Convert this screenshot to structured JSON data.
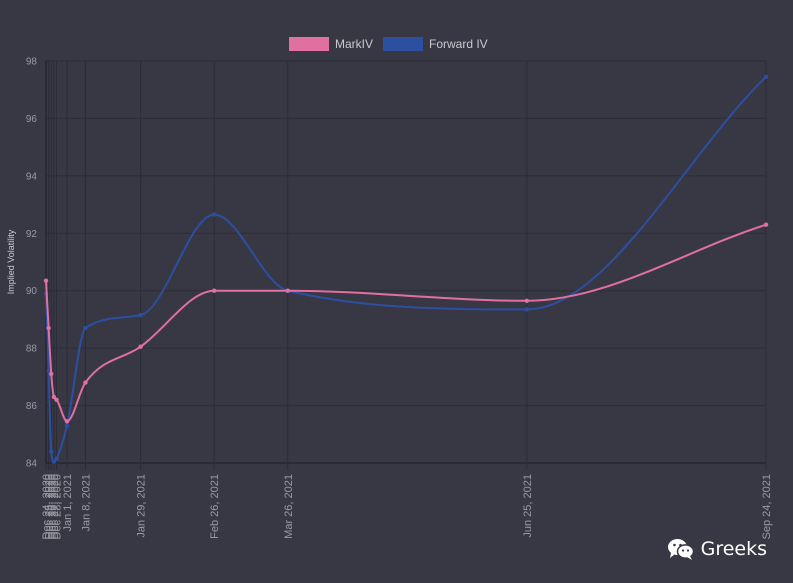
{
  "chart_data": {
    "type": "line",
    "ylabel": "Implied Volatility",
    "ylim": [
      84,
      98
    ],
    "yticks": [
      84,
      86,
      88,
      90,
      92,
      94,
      96,
      98
    ],
    "grid": true,
    "legend_position": "top",
    "categories": [
      "Dec 24, 2020",
      "Dec 25, 2020",
      "Dec 26, 2020",
      "Dec 27, 2020",
      "Dec 28, 2020",
      "Jan 1, 2021",
      "Jan 8, 2021",
      "Jan 29, 2021",
      "Feb 26, 2021",
      "Mar 26, 2021",
      "Jun 25, 2021",
      "Sep 24, 2021"
    ],
    "x_dates": [
      "2020-12-24",
      "2020-12-25",
      "2020-12-26",
      "2020-12-27",
      "2020-12-28",
      "2021-01-01",
      "2021-01-08",
      "2021-01-29",
      "2021-02-26",
      "2021-03-26",
      "2021-06-25",
      "2021-09-24"
    ],
    "series": [
      {
        "name": "MarkIV",
        "color": "#e0709f",
        "values": [
          90.35,
          88.7,
          87.1,
          86.3,
          86.2,
          85.45,
          86.8,
          88.05,
          90.0,
          90.0,
          89.65,
          92.3
        ]
      },
      {
        "name": "Forward IV",
        "color": "#2d4fa0",
        "values": [
          89.9,
          87.2,
          84.4,
          84.05,
          84.15,
          85.3,
          88.7,
          89.15,
          92.65,
          90.0,
          89.35,
          97.45
        ]
      }
    ]
  },
  "watermark": {
    "text": "Greeks",
    "icon": "wechat-icon"
  }
}
